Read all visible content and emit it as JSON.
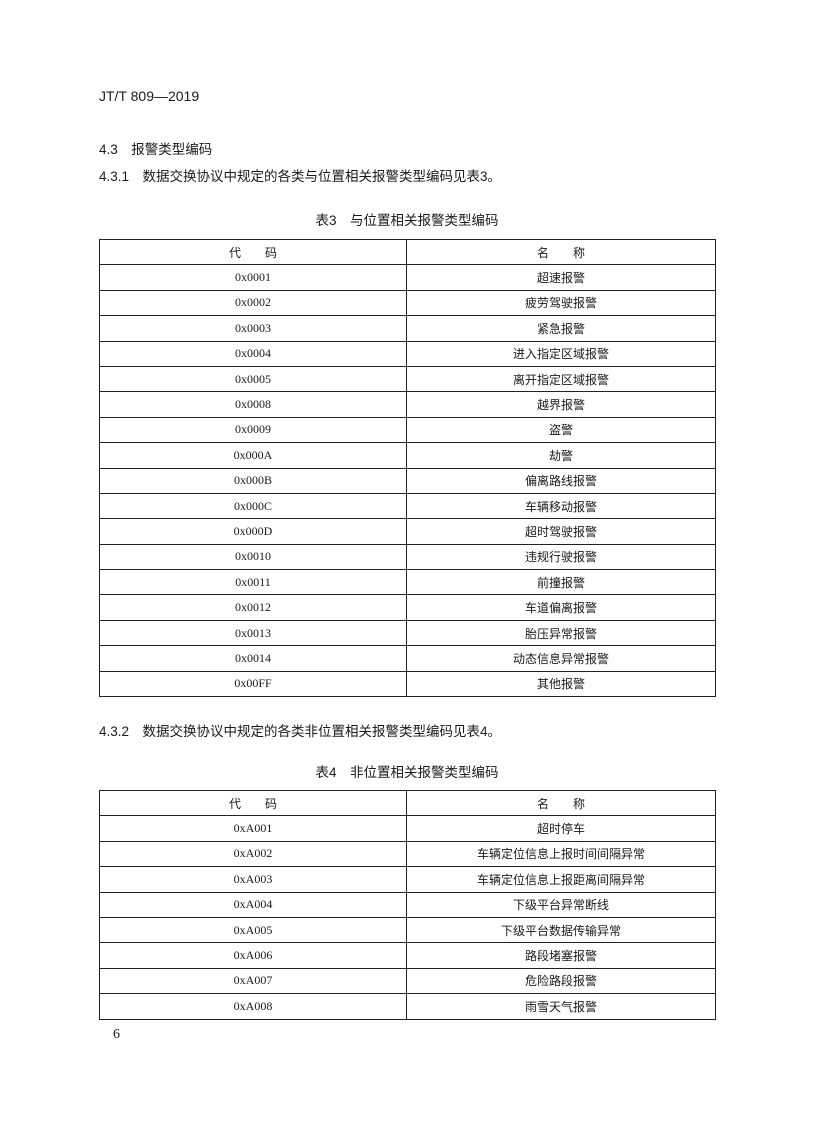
{
  "header": "JT/T 809—2019",
  "section_4_3": "4.3　报警类型编码",
  "section_4_3_1": "4.3.1　数据交换协议中规定的各类与位置相关报警类型编码见表3。",
  "table3": {
    "caption": "表3　与位置相关报警类型编码",
    "headers": [
      "代　　码",
      "名　　称"
    ],
    "rows": [
      [
        "0x0001",
        "超速报警"
      ],
      [
        "0x0002",
        "疲劳驾驶报警"
      ],
      [
        "0x0003",
        "紧急报警"
      ],
      [
        "0x0004",
        "进入指定区域报警"
      ],
      [
        "0x0005",
        "离开指定区域报警"
      ],
      [
        "0x0008",
        "越界报警"
      ],
      [
        "0x0009",
        "盗警"
      ],
      [
        "0x000A",
        "劫警"
      ],
      [
        "0x000B",
        "偏离路线报警"
      ],
      [
        "0x000C",
        "车辆移动报警"
      ],
      [
        "0x000D",
        "超时驾驶报警"
      ],
      [
        "0x0010",
        "违规行驶报警"
      ],
      [
        "0x0011",
        "前撞报警"
      ],
      [
        "0x0012",
        "车道偏离报警"
      ],
      [
        "0x0013",
        "胎压异常报警"
      ],
      [
        "0x0014",
        "动态信息异常报警"
      ],
      [
        "0x00FF",
        "其他报警"
      ]
    ]
  },
  "section_4_3_2": "4.3.2　数据交换协议中规定的各类非位置相关报警类型编码见表4。",
  "table4": {
    "caption": "表4　非位置相关报警类型编码",
    "headers": [
      "代　　码",
      "名　　称"
    ],
    "rows": [
      [
        "0xA001",
        "超时停车"
      ],
      [
        "0xA002",
        "车辆定位信息上报时间间隔异常"
      ],
      [
        "0xA003",
        "车辆定位信息上报距离间隔异常"
      ],
      [
        "0xA004",
        "下级平台异常断线"
      ],
      [
        "0xA005",
        "下级平台数据传输异常"
      ],
      [
        "0xA006",
        "路段堵塞报警"
      ],
      [
        "0xA007",
        "危险路段报警"
      ],
      [
        "0xA008",
        "雨雪天气报警"
      ]
    ]
  },
  "page_number": "6"
}
